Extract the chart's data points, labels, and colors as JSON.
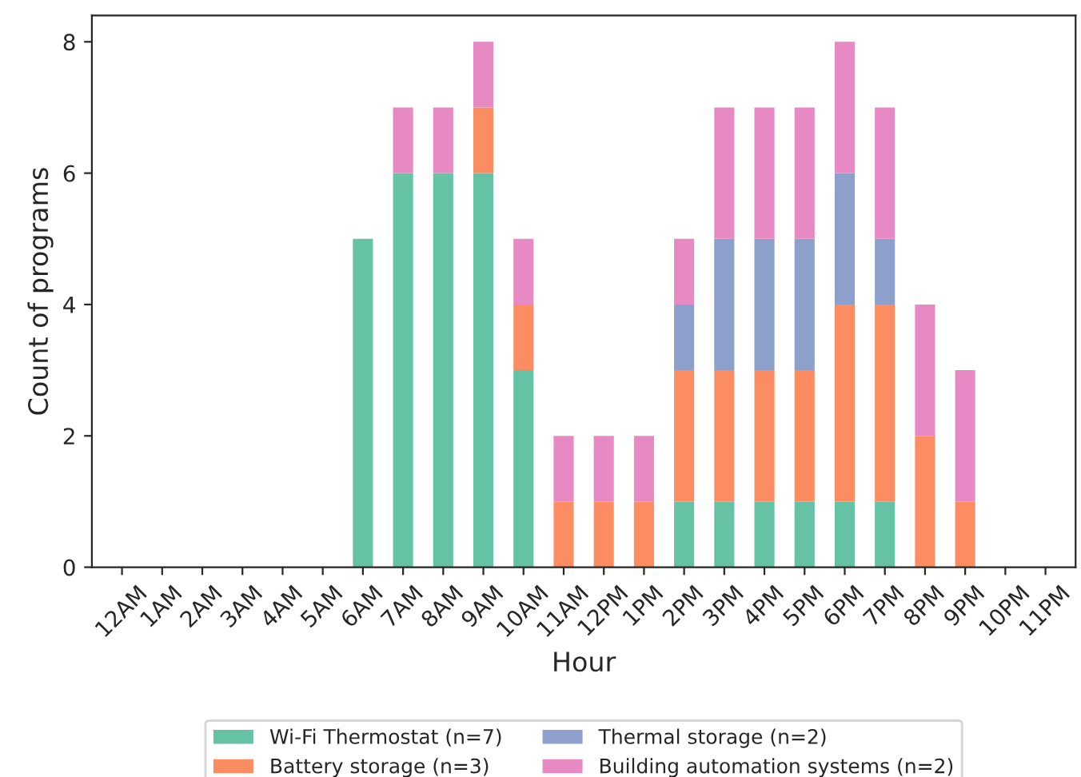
{
  "chart_data": {
    "type": "bar",
    "stacked": true,
    "xlabel": "Hour",
    "ylabel": "Count of programs",
    "categories": [
      "12AM",
      "1AM",
      "2AM",
      "3AM",
      "4AM",
      "5AM",
      "6AM",
      "7AM",
      "8AM",
      "9AM",
      "10AM",
      "11AM",
      "12PM",
      "1PM",
      "2PM",
      "3PM",
      "4PM",
      "5PM",
      "6PM",
      "7PM",
      "8PM",
      "9PM",
      "10PM",
      "11PM"
    ],
    "series": [
      {
        "name": "Wi-Fi Thermostat (n=7)",
        "color": "#66c2a5",
        "values": [
          0,
          0,
          0,
          0,
          0,
          0,
          5,
          6,
          6,
          6,
          3,
          0,
          0,
          0,
          1,
          1,
          1,
          1,
          1,
          1,
          0,
          0,
          0,
          0
        ]
      },
      {
        "name": "Battery storage (n=3)",
        "color": "#fc8d62",
        "values": [
          0,
          0,
          0,
          0,
          0,
          0,
          0,
          0,
          0,
          1,
          1,
          1,
          1,
          1,
          2,
          2,
          2,
          2,
          3,
          3,
          2,
          1,
          0,
          0
        ]
      },
      {
        "name": "Thermal storage (n=2)",
        "color": "#8da0cb",
        "values": [
          0,
          0,
          0,
          0,
          0,
          0,
          0,
          0,
          0,
          0,
          0,
          0,
          0,
          0,
          1,
          2,
          2,
          2,
          2,
          1,
          0,
          0,
          0,
          0
        ]
      },
      {
        "name": "Building automation systems (n=2)",
        "color": "#e78ac3",
        "values": [
          0,
          0,
          0,
          0,
          0,
          0,
          0,
          1,
          1,
          1,
          1,
          1,
          1,
          1,
          1,
          2,
          2,
          2,
          2,
          2,
          2,
          2,
          0,
          0
        ]
      }
    ],
    "ylim": [
      0,
      8.4
    ],
    "yticks": [
      0,
      2,
      4,
      6,
      8
    ],
    "grid": false,
    "legend": "bottom"
  }
}
